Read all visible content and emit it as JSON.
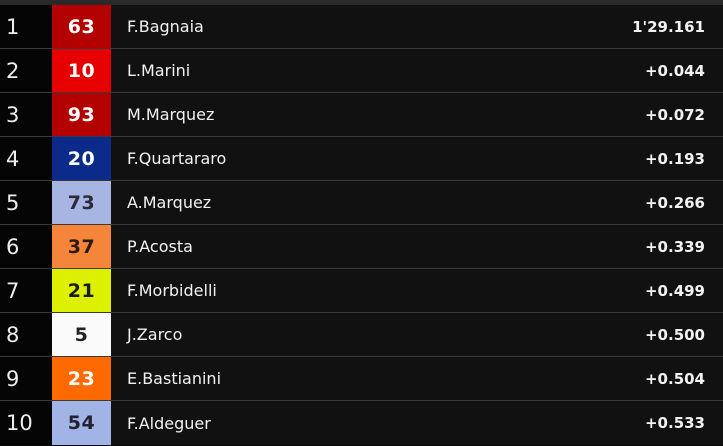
{
  "results": [
    {
      "pos": "1",
      "number": "63",
      "rider": "F.Bagnaia",
      "time": "1'29.161",
      "bg": "#b30000",
      "fg": "#ffffff"
    },
    {
      "pos": "2",
      "number": "10",
      "rider": "L.Marini",
      "time": "+0.044",
      "bg": "#e60000",
      "fg": "#ffffff"
    },
    {
      "pos": "3",
      "number": "93",
      "rider": "M.Marquez",
      "time": "+0.072",
      "bg": "#b30000",
      "fg": "#ffffff"
    },
    {
      "pos": "4",
      "number": "20",
      "rider": "F.Quartararo",
      "time": "+0.193",
      "bg": "#0b2a8a",
      "fg": "#ffffff"
    },
    {
      "pos": "5",
      "number": "73",
      "rider": "A.Marquez",
      "time": "+0.266",
      "bg": "#a6b5e2",
      "fg": "#2a2a3a"
    },
    {
      "pos": "6",
      "number": "37",
      "rider": "P.Acosta",
      "time": "+0.339",
      "bg": "#f5853a",
      "fg": "#2a1a10"
    },
    {
      "pos": "7",
      "number": "21",
      "rider": "F.Morbidelli",
      "time": "+0.499",
      "bg": "#dcf000",
      "fg": "#1a1a1a"
    },
    {
      "pos": "8",
      "number": "5",
      "rider": "J.Zarco",
      "time": "+0.500",
      "bg": "#fafafa",
      "fg": "#222222"
    },
    {
      "pos": "9",
      "number": "23",
      "rider": "E.Bastianini",
      "time": "+0.504",
      "bg": "#ff6a00",
      "fg": "#ffffff"
    },
    {
      "pos": "10",
      "number": "54",
      "rider": "F.Aldeguer",
      "time": "+0.533",
      "bg": "#a2b3e6",
      "fg": "#222233"
    }
  ]
}
